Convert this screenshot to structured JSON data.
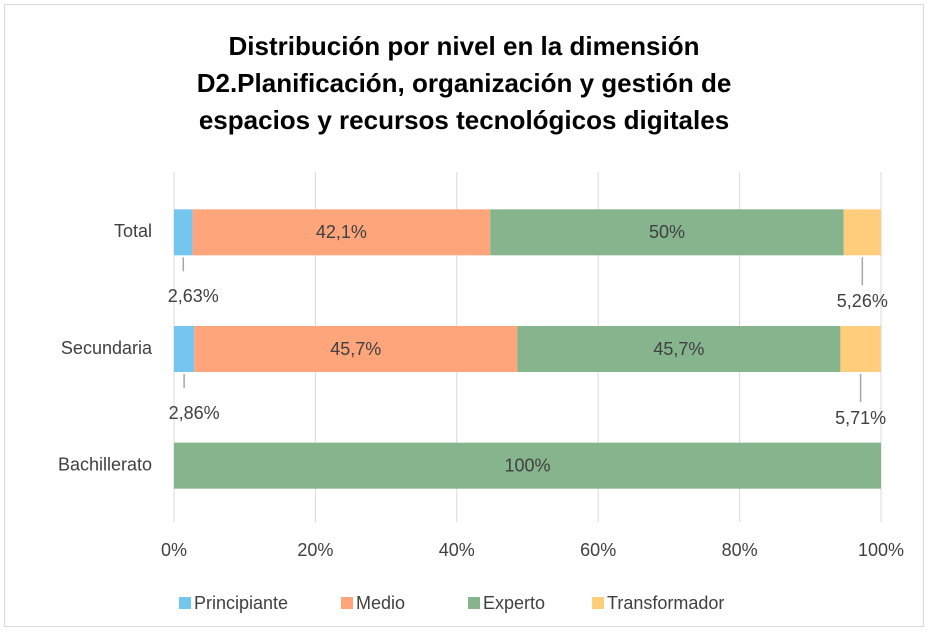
{
  "chart_data": {
    "type": "stacked_bar_horizontal",
    "title": [
      "Distribución por nivel en la dimensión",
      "D2.Planificación, organización y gestión de",
      "espacios y recursos tecnológicos digitales"
    ],
    "categories": [
      "Total",
      "Secundaria",
      "Bachillerato"
    ],
    "series": [
      {
        "name": "Principiante",
        "color": "#75c6ef",
        "values": [
          2.63,
          2.86,
          0
        ],
        "value_labels": [
          "2,63%",
          "2,86%",
          null
        ]
      },
      {
        "name": "Medio",
        "color": "#ffa57c",
        "values": [
          42.1,
          45.7,
          0
        ],
        "value_labels": [
          "42,1%",
          "45,7%",
          null
        ]
      },
      {
        "name": "Experto",
        "color": "#86b48d",
        "values": [
          50,
          45.7,
          100
        ],
        "value_labels": [
          "50%",
          "45,7%",
          "100%"
        ]
      },
      {
        "name": "Transformador",
        "color": "#ffcd7c",
        "values": [
          5.26,
          5.71,
          0
        ],
        "value_labels": [
          "5,26%",
          "5,71%",
          null
        ]
      }
    ],
    "xlim": [
      0,
      100
    ],
    "xticks": [
      {
        "value": 0,
        "label": "0%"
      },
      {
        "value": 20,
        "label": "20%"
      },
      {
        "value": 40,
        "label": "40%"
      },
      {
        "value": 60,
        "label": "60%"
      },
      {
        "value": 80,
        "label": "80%"
      },
      {
        "value": 100,
        "label": "100%"
      }
    ],
    "grid": true,
    "legend": "bottom"
  }
}
